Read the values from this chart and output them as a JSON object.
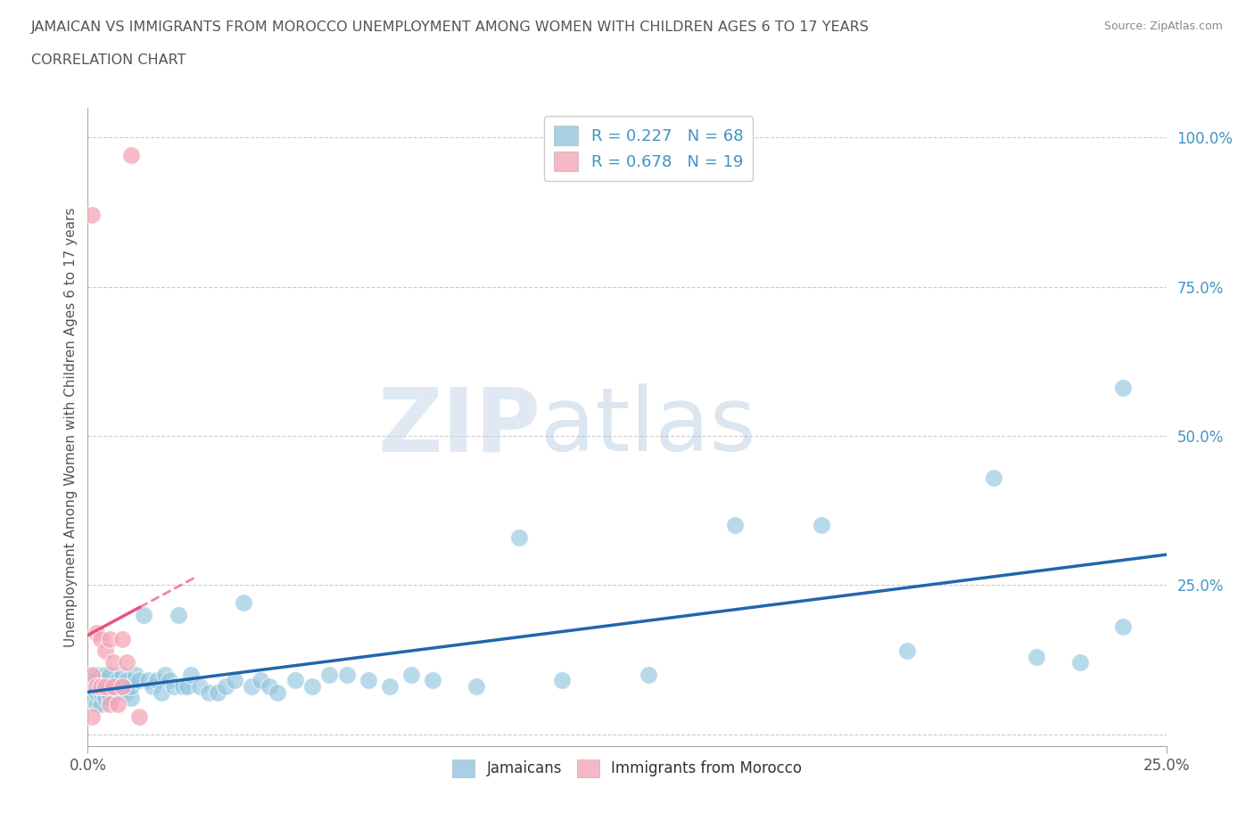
{
  "title_line1": "JAMAICAN VS IMMIGRANTS FROM MOROCCO UNEMPLOYMENT AMONG WOMEN WITH CHILDREN AGES 6 TO 17 YEARS",
  "title_line2": "CORRELATION CHART",
  "source": "Source: ZipAtlas.com",
  "ylabel": "Unemployment Among Women with Children Ages 6 to 17 years",
  "xlim": [
    0.0,
    0.25
  ],
  "ylim": [
    -0.02,
    1.05
  ],
  "x_ticks": [
    0.0,
    0.25
  ],
  "x_tick_labels": [
    "0.0%",
    "25.0%"
  ],
  "y_ticks": [
    0.0,
    0.25,
    0.5,
    0.75,
    1.0
  ],
  "y_tick_labels": [
    "",
    "25.0%",
    "50.0%",
    "75.0%",
    "100.0%"
  ],
  "watermark_zip": "ZIP",
  "watermark_atlas": "atlas",
  "jamaicans_color": "#92c5de",
  "morocco_color": "#f4a6b8",
  "jamaicans_line_color": "#2166ac",
  "morocco_line_color": "#e8547a",
  "jamaicans_R": 0.227,
  "jamaicans_N": 68,
  "morocco_R": 0.678,
  "morocco_N": 19,
  "legend_text_color": "#4393c3",
  "title_color": "#555555",
  "background_color": "#ffffff",
  "grid_color": "#cccccc",
  "jamaicans_x": [
    0.001,
    0.001,
    0.002,
    0.002,
    0.002,
    0.002,
    0.003,
    0.003,
    0.003,
    0.004,
    0.004,
    0.004,
    0.005,
    0.005,
    0.005,
    0.006,
    0.007,
    0.007,
    0.008,
    0.008,
    0.009,
    0.009,
    0.01,
    0.01,
    0.011,
    0.012,
    0.013,
    0.014,
    0.015,
    0.016,
    0.017,
    0.018,
    0.019,
    0.02,
    0.021,
    0.022,
    0.023,
    0.024,
    0.026,
    0.028,
    0.03,
    0.032,
    0.034,
    0.036,
    0.038,
    0.04,
    0.042,
    0.044,
    0.048,
    0.052,
    0.056,
    0.06,
    0.065,
    0.07,
    0.075,
    0.08,
    0.09,
    0.1,
    0.11,
    0.13,
    0.15,
    0.17,
    0.19,
    0.21,
    0.22,
    0.23,
    0.24,
    0.24
  ],
  "jamaicans_y": [
    0.06,
    0.08,
    0.05,
    0.07,
    0.09,
    0.1,
    0.05,
    0.07,
    0.09,
    0.06,
    0.08,
    0.1,
    0.06,
    0.08,
    0.1,
    0.08,
    0.07,
    0.09,
    0.08,
    0.1,
    0.07,
    0.09,
    0.06,
    0.08,
    0.1,
    0.09,
    0.2,
    0.09,
    0.08,
    0.09,
    0.07,
    0.1,
    0.09,
    0.08,
    0.2,
    0.08,
    0.08,
    0.1,
    0.08,
    0.07,
    0.07,
    0.08,
    0.09,
    0.22,
    0.08,
    0.09,
    0.08,
    0.07,
    0.09,
    0.08,
    0.1,
    0.1,
    0.09,
    0.08,
    0.1,
    0.09,
    0.08,
    0.33,
    0.09,
    0.1,
    0.35,
    0.35,
    0.14,
    0.43,
    0.13,
    0.12,
    0.58,
    0.18
  ],
  "morocco_x": [
    0.001,
    0.001,
    0.001,
    0.002,
    0.002,
    0.003,
    0.003,
    0.004,
    0.004,
    0.005,
    0.005,
    0.006,
    0.006,
    0.007,
    0.008,
    0.008,
    0.009,
    0.01,
    0.012
  ],
  "morocco_y": [
    0.87,
    0.1,
    0.03,
    0.17,
    0.08,
    0.16,
    0.08,
    0.14,
    0.08,
    0.16,
    0.05,
    0.12,
    0.08,
    0.05,
    0.16,
    0.08,
    0.12,
    0.97,
    0.03
  ]
}
